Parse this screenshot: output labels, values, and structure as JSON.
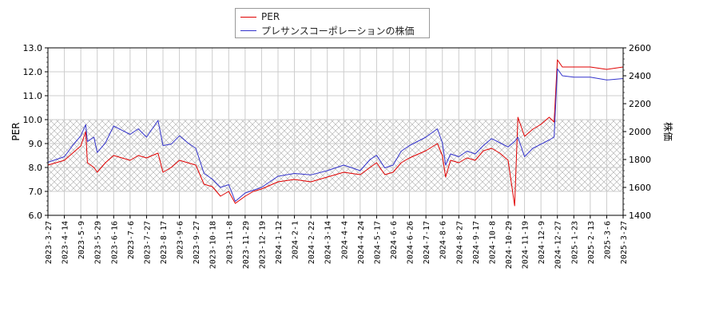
{
  "chart_data": {
    "type": "line",
    "legend": {
      "placement": "top-center",
      "items": [
        {
          "label": "PER",
          "color": "#e00000"
        },
        {
          "label": "プレサンスコーポレーションの株価",
          "color": "#3333cc"
        }
      ]
    },
    "y_left": {
      "label": "PER",
      "range": [
        6.0,
        13.0
      ],
      "ticks": [
        "6.0",
        "7.0",
        "8.0",
        "9.0",
        "10.0",
        "11.0",
        "12.0",
        "13.0"
      ],
      "shaded_band": [
        7.0,
        10.0
      ]
    },
    "y_right": {
      "label": "株価",
      "range": [
        1400,
        2600
      ],
      "ticks": [
        "1400",
        "1600",
        "1800",
        "2000",
        "2200",
        "2400",
        "2600"
      ]
    },
    "x_axis": {
      "ticks": [
        "2023-3-27",
        "2023-4-14",
        "2023-5-9",
        "2023-5-29",
        "2023-6-16",
        "2023-7-6",
        "2023-7-27",
        "2023-8-17",
        "2023-9-6",
        "2023-9-27",
        "2023-10-18",
        "2023-11-8",
        "2023-11-29",
        "2023-12-19",
        "2024-1-12",
        "2024-2-1",
        "2024-2-22",
        "2024-3-14",
        "2024-4-4",
        "2024-4-24",
        "2024-5-17",
        "2024-6-6",
        "2024-6-26",
        "2024-7-17",
        "2024-8-6",
        "2024-8-27",
        "2024-9-17",
        "2024-10-8",
        "2024-10-29",
        "2024-11-19",
        "2024-12-9",
        "2024-12-27",
        "2025-1-23",
        "2025-2-13",
        "2025-3-6",
        "2025-3-27"
      ]
    },
    "grid": true,
    "series": [
      {
        "name": "PER",
        "axis": "left",
        "color": "#e00000",
        "points": [
          [
            0,
            8.1
          ],
          [
            1,
            8.3
          ],
          [
            1.5,
            8.6
          ],
          [
            2,
            8.9
          ],
          [
            2.3,
            9.5
          ],
          [
            2.4,
            8.2
          ],
          [
            2.8,
            8.0
          ],
          [
            3,
            7.8
          ],
          [
            3.5,
            8.2
          ],
          [
            4,
            8.5
          ],
          [
            4.5,
            8.4
          ],
          [
            5,
            8.3
          ],
          [
            5.5,
            8.5
          ],
          [
            6,
            8.4
          ],
          [
            6.7,
            8.6
          ],
          [
            7,
            7.8
          ],
          [
            7.5,
            8.0
          ],
          [
            8,
            8.3
          ],
          [
            8.5,
            8.2
          ],
          [
            9,
            8.1
          ],
          [
            9.5,
            7.3
          ],
          [
            10,
            7.2
          ],
          [
            10.5,
            6.8
          ],
          [
            11,
            7.0
          ],
          [
            11.4,
            6.5
          ],
          [
            12,
            6.8
          ],
          [
            12.5,
            7.0
          ],
          [
            13,
            7.1
          ],
          [
            14,
            7.4
          ],
          [
            15,
            7.5
          ],
          [
            16,
            7.4
          ],
          [
            17,
            7.6
          ],
          [
            18,
            7.8
          ],
          [
            19,
            7.7
          ],
          [
            19.6,
            8.0
          ],
          [
            20,
            8.2
          ],
          [
            20.5,
            7.7
          ],
          [
            21,
            7.8
          ],
          [
            21.5,
            8.2
          ],
          [
            22,
            8.4
          ],
          [
            23,
            8.7
          ],
          [
            23.7,
            9.0
          ],
          [
            24,
            8.5
          ],
          [
            24.2,
            7.6
          ],
          [
            24.5,
            8.3
          ],
          [
            25,
            8.2
          ],
          [
            25.5,
            8.4
          ],
          [
            26,
            8.3
          ],
          [
            26.5,
            8.7
          ],
          [
            27,
            8.8
          ],
          [
            27.5,
            8.6
          ],
          [
            28,
            8.3
          ],
          [
            28.4,
            6.4
          ],
          [
            28.6,
            10.1
          ],
          [
            29,
            9.3
          ],
          [
            29.5,
            9.6
          ],
          [
            30,
            9.8
          ],
          [
            30.5,
            10.1
          ],
          [
            30.8,
            9.9
          ],
          [
            31,
            12.5
          ],
          [
            31.3,
            12.2
          ],
          [
            32,
            12.2
          ],
          [
            33,
            12.2
          ],
          [
            34,
            12.1
          ],
          [
            35,
            12.2
          ]
        ]
      },
      {
        "name": "プレサンスコーポレーションの株価",
        "axis": "right",
        "color": "#3333cc",
        "points": [
          [
            0,
            1780
          ],
          [
            1,
            1820
          ],
          [
            1.5,
            1900
          ],
          [
            2,
            1970
          ],
          [
            2.3,
            2050
          ],
          [
            2.4,
            1930
          ],
          [
            2.8,
            1960
          ],
          [
            3,
            1850
          ],
          [
            3.5,
            1920
          ],
          [
            4,
            2040
          ],
          [
            4.5,
            2010
          ],
          [
            5,
            1980
          ],
          [
            5.5,
            2020
          ],
          [
            6,
            1960
          ],
          [
            6.7,
            2080
          ],
          [
            7,
            1900
          ],
          [
            7.5,
            1910
          ],
          [
            8,
            1970
          ],
          [
            8.5,
            1920
          ],
          [
            9,
            1880
          ],
          [
            9.5,
            1700
          ],
          [
            10,
            1660
          ],
          [
            10.5,
            1600
          ],
          [
            11,
            1620
          ],
          [
            11.4,
            1500
          ],
          [
            12,
            1560
          ],
          [
            12.5,
            1580
          ],
          [
            13,
            1600
          ],
          [
            14,
            1680
          ],
          [
            15,
            1700
          ],
          [
            16,
            1690
          ],
          [
            17,
            1720
          ],
          [
            18,
            1760
          ],
          [
            19,
            1720
          ],
          [
            19.6,
            1800
          ],
          [
            20,
            1830
          ],
          [
            20.5,
            1740
          ],
          [
            21,
            1760
          ],
          [
            21.5,
            1860
          ],
          [
            22,
            1900
          ],
          [
            23,
            1960
          ],
          [
            23.7,
            2020
          ],
          [
            24,
            1920
          ],
          [
            24.2,
            1760
          ],
          [
            24.5,
            1840
          ],
          [
            25,
            1820
          ],
          [
            25.5,
            1860
          ],
          [
            26,
            1840
          ],
          [
            26.5,
            1900
          ],
          [
            27,
            1950
          ],
          [
            27.5,
            1920
          ],
          [
            28,
            1890
          ],
          [
            28.4,
            1930
          ],
          [
            28.6,
            1960
          ],
          [
            29,
            1820
          ],
          [
            29.5,
            1880
          ],
          [
            30,
            1910
          ],
          [
            30.5,
            1940
          ],
          [
            30.8,
            1960
          ],
          [
            31,
            2450
          ],
          [
            31.3,
            2400
          ],
          [
            32,
            2390
          ],
          [
            33,
            2390
          ],
          [
            34,
            2370
          ],
          [
            35,
            2380
          ]
        ]
      }
    ]
  }
}
